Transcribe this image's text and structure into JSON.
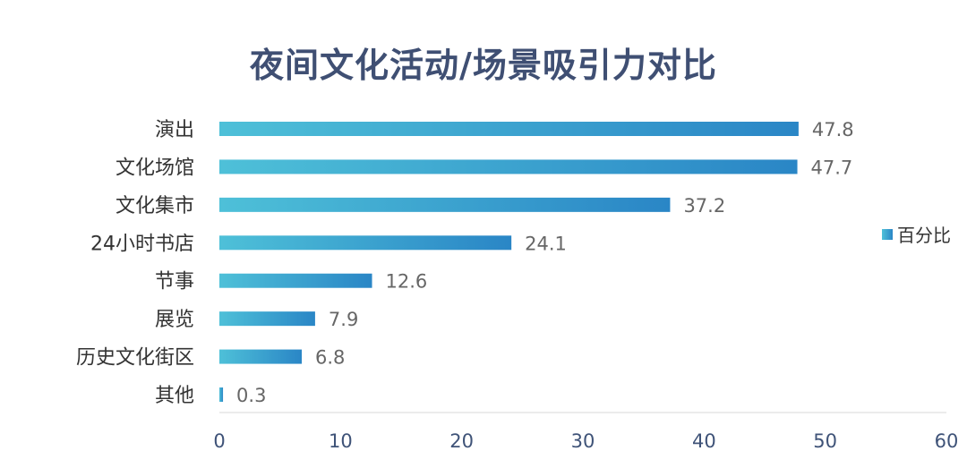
{
  "chart_data": {
    "type": "bar",
    "orientation": "horizontal",
    "title": "夜间文化活动/场景吸引力对比",
    "categories": [
      "演出",
      "文化场馆",
      "文化集市",
      "24小时书店",
      "节事",
      "展览",
      "历史文化街区",
      "其他"
    ],
    "series": [
      {
        "name": "百分比",
        "values": [
          47.8,
          47.7,
          37.2,
          24.1,
          12.6,
          7.9,
          6.8,
          0.3
        ]
      }
    ],
    "xlim": [
      0,
      60
    ],
    "xticks": [
      0,
      10,
      20,
      30,
      40,
      50,
      60
    ],
    "xlabel": "",
    "ylabel": "",
    "grid": false,
    "legend_position": "right",
    "colors": {
      "bar_start": "#4ec0d8",
      "bar_end": "#2a86c6",
      "title": "#3f4f73",
      "axis": "#d9d9d9"
    }
  }
}
